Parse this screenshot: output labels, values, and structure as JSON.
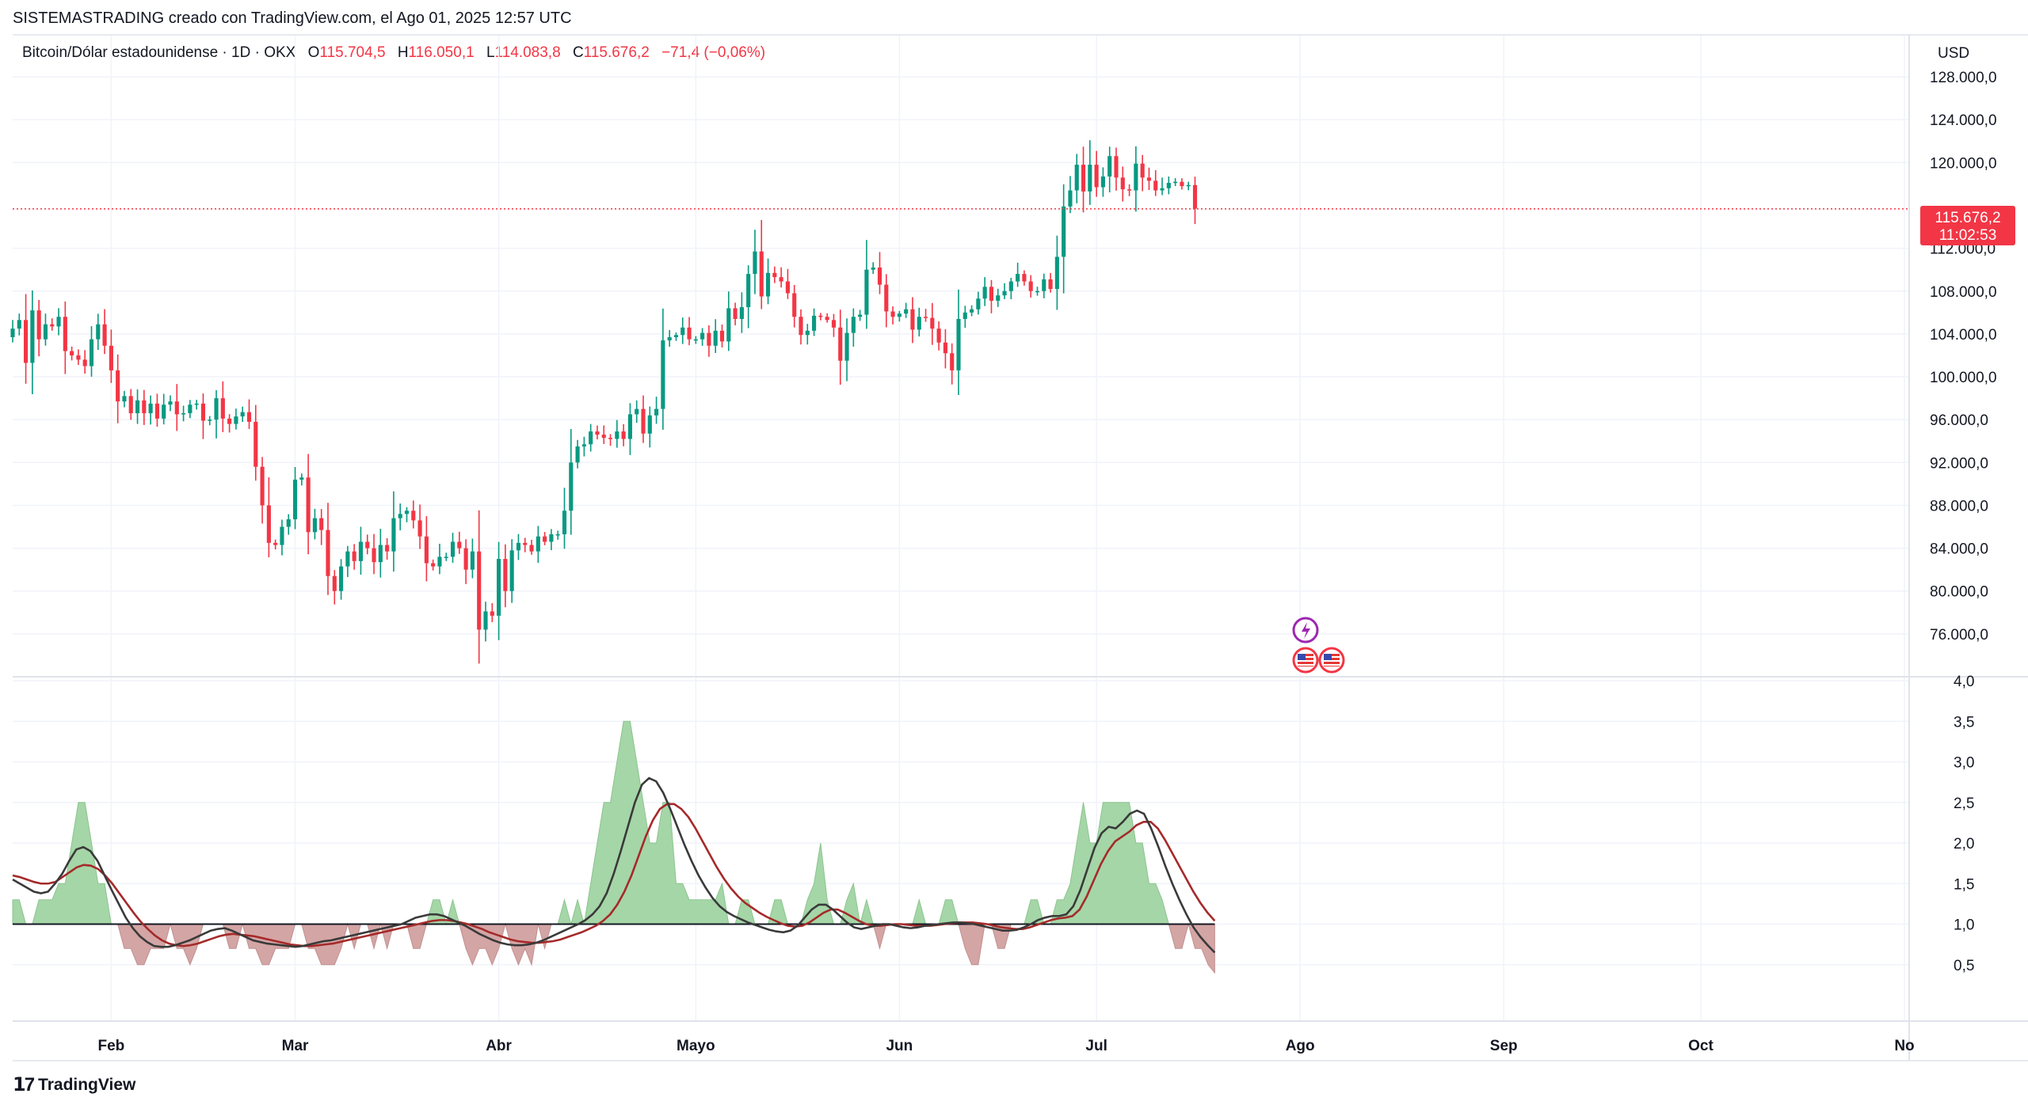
{
  "header": {
    "attribution": "SISTEMASTRADING creado con TradingView.com, el Ago 01, 2025 12:57 UTC"
  },
  "symbol": {
    "name": "Bitcoin/Dólar estadounidense · 1D · OKX",
    "open_label": "O",
    "open": "115.704,5",
    "high_label": "H",
    "high": "116.050,1",
    "low_label": "L",
    "low": "114.083,8",
    "close_label": "C",
    "close": "115.676,2",
    "change": "−71,4 (−0,06%)"
  },
  "currency": "USD",
  "price_tag": {
    "price": "115.676,2",
    "countdown": "11:02:53",
    "value": 115676.2
  },
  "branding": {
    "logo_text": "TradingView"
  },
  "colors": {
    "up": "#089981",
    "down": "#f23645",
    "green_fill": "#a5d6a7",
    "red_fill": "#d4a5a5",
    "ma_fast": "#3a3a3a",
    "ma_slow": "#a52a2a"
  },
  "chart_data": [
    {
      "type": "candlestick",
      "x_range": [
        "2025-01-17",
        "2025-11-01"
      ],
      "ylim": [
        72000,
        130000
      ],
      "y_ticks": [
        128000,
        124000,
        120000,
        112000,
        108000,
        104000,
        100000,
        96000,
        92000,
        88000,
        84000,
        80000,
        76000
      ],
      "y_tick_labels": [
        "128.000,0",
        "124.000,0",
        "120.000,0",
        "112.000,0",
        "108.000,0",
        "104.000,0",
        "100.000,0",
        "96.000,0",
        "92.000,0",
        "88.000,0",
        "84.000,0",
        "80.000,0",
        "76.000,0"
      ],
      "x_ticks": [
        {
          "label": "Feb",
          "date": "2025-02-01"
        },
        {
          "label": "Mar",
          "date": "2025-03-01"
        },
        {
          "label": "Abr",
          "date": "2025-04-01"
        },
        {
          "label": "Mayo",
          "date": "2025-05-01"
        },
        {
          "label": "Jun",
          "date": "2025-06-01"
        },
        {
          "label": "Jul",
          "date": "2025-07-01"
        },
        {
          "label": "Ago",
          "date": "2025-08-01"
        },
        {
          "label": "Sep",
          "date": "2025-09-01"
        },
        {
          "label": "Oct",
          "date": "2025-10-01"
        },
        {
          "label": "No",
          "date": "2025-11-01"
        }
      ],
      "first_date": "2025-01-17",
      "closes": [
        104500,
        105300,
        101300,
        106200,
        103500,
        104900,
        104700,
        105600,
        102400,
        102000,
        101600,
        101000,
        103500,
        104900,
        102900,
        100600,
        97700,
        98200,
        96600,
        97800,
        96600,
        97500,
        96100,
        97400,
        97700,
        96500,
        96600,
        97400,
        97500,
        95900,
        96000,
        98000,
        96100,
        95600,
        96300,
        96700,
        95800,
        91600,
        88000,
        84500,
        84300,
        86000,
        86700,
        90400,
        90600,
        85500,
        86800,
        85700,
        81400,
        80000,
        82300,
        83700,
        82800,
        84600,
        84000,
        82700,
        84300,
        83700,
        86800,
        87200,
        87500,
        86600,
        85100,
        82600,
        82300,
        83200,
        83200,
        84600,
        84000,
        82000,
        83700,
        76400,
        78100,
        77700,
        83000,
        80000,
        83800,
        84500,
        84300,
        83700,
        85100,
        84600,
        85300,
        85300,
        87500,
        92000,
        93500,
        93700,
        94900,
        94600,
        94300,
        94200,
        94900,
        94200,
        96500,
        97000,
        94700,
        96400,
        97000,
        103400,
        103700,
        103900,
        104600,
        103500,
        103500,
        104100,
        102900,
        104300,
        103300,
        106400,
        105400,
        106500,
        109600,
        111700,
        107500,
        109700,
        109300,
        108900,
        107800,
        105600,
        103900,
        104300,
        105700,
        105600,
        105300,
        104600,
        101500,
        104100,
        105600,
        105800,
        110000,
        110200,
        108600,
        106100,
        105600,
        105900,
        106300,
        104400,
        105600,
        105500,
        104500,
        103200,
        102200,
        100600,
        105400,
        106000,
        106300,
        107300,
        108400,
        107100,
        107600,
        108000,
        108900,
        109600,
        108900,
        108000,
        108000,
        109100,
        108200,
        111200,
        115900,
        117400,
        119800,
        117300,
        119800,
        117700,
        118700,
        120600,
        118600,
        117500,
        117400,
        119900,
        118600,
        118300,
        117400,
        117600,
        118100,
        118200,
        117800,
        117900,
        115700
      ]
    },
    {
      "type": "area",
      "ylim": [
        0,
        4
      ],
      "baseline": 1.0,
      "y_ticks": [
        4.0,
        3.5,
        3.0,
        2.5,
        2.0,
        1.5,
        1.0,
        0.5
      ],
      "y_tick_labels": [
        "4,0",
        "3,5",
        "3,0",
        "2,5",
        "2,0",
        "1,5",
        "1,0",
        "0,5"
      ],
      "x_range": [
        "2025-01-17",
        "2025-08-01"
      ],
      "values": [
        1.3,
        1.3,
        1.0,
        1.0,
        1.3,
        1.3,
        1.3,
        1.5,
        1.5,
        2.0,
        2.5,
        2.5,
        2.0,
        1.5,
        1.5,
        1.0,
        1.0,
        0.7,
        0.7,
        0.5,
        0.5,
        0.7,
        0.7,
        0.7,
        1.0,
        0.7,
        0.7,
        0.5,
        0.7,
        1.0,
        1.0,
        1.0,
        1.0,
        0.7,
        0.7,
        1.0,
        0.7,
        0.7,
        0.5,
        0.5,
        0.7,
        0.7,
        0.7,
        1.0,
        1.0,
        0.7,
        0.7,
        0.5,
        0.5,
        0.5,
        0.7,
        1.0,
        0.7,
        1.0,
        1.0,
        0.7,
        1.0,
        0.7,
        1.0,
        1.0,
        1.0,
        0.7,
        0.7,
        1.0,
        1.3,
        1.3,
        1.0,
        1.3,
        1.0,
        0.7,
        0.5,
        0.7,
        0.7,
        0.5,
        0.7,
        1.0,
        0.7,
        0.5,
        0.7,
        0.5,
        1.0,
        0.7,
        1.0,
        1.0,
        1.3,
        1.0,
        1.3,
        1.0,
        1.5,
        2.0,
        2.5,
        2.5,
        3.0,
        3.5,
        3.5,
        3.0,
        2.5,
        2.0,
        2.0,
        2.5,
        2.5,
        1.5,
        1.5,
        1.3,
        1.3,
        1.3,
        1.3,
        1.3,
        1.5,
        1.0,
        1.0,
        1.3,
        1.3,
        1.0,
        1.0,
        1.0,
        1.3,
        1.3,
        1.0,
        1.0,
        1.0,
        1.3,
        1.5,
        2.0,
        1.3,
        1.0,
        1.0,
        1.3,
        1.5,
        1.0,
        1.3,
        1.0,
        0.7,
        1.0,
        1.0,
        1.0,
        1.0,
        1.0,
        1.3,
        1.0,
        1.0,
        1.0,
        1.3,
        1.3,
        1.0,
        0.7,
        0.5,
        0.5,
        1.0,
        1.0,
        0.7,
        0.7,
        1.0,
        1.0,
        1.0,
        1.3,
        1.3,
        1.0,
        1.0,
        1.3,
        1.3,
        1.5,
        2.0,
        2.5,
        2.0,
        2.0,
        2.5,
        2.5,
        2.5,
        2.5,
        2.5,
        2.0,
        2.0,
        1.5,
        1.5,
        1.3,
        1.0,
        0.7,
        0.7,
        1.0,
        0.7,
        0.7,
        0.5,
        0.4
      ],
      "ma_fast": [
        1.55,
        1.5,
        1.45,
        1.4,
        1.38,
        1.4,
        1.5,
        1.62,
        1.78,
        1.92,
        1.95,
        1.9,
        1.78,
        1.6,
        1.42,
        1.25,
        1.08,
        0.95,
        0.85,
        0.78,
        0.73,
        0.72,
        0.72,
        0.74,
        0.77,
        0.8,
        0.84,
        0.88,
        0.92,
        0.94,
        0.95,
        0.92,
        0.88,
        0.84,
        0.8,
        0.78,
        0.76,
        0.75,
        0.74,
        0.73,
        0.72,
        0.73,
        0.75,
        0.77,
        0.79,
        0.8,
        0.82,
        0.84,
        0.86,
        0.88,
        0.9,
        0.92,
        0.94,
        0.96,
        0.98,
        1.0,
        1.04,
        1.08,
        1.1,
        1.12,
        1.12,
        1.1,
        1.06,
        1.02,
        0.98,
        0.93,
        0.88,
        0.84,
        0.8,
        0.77,
        0.75,
        0.74,
        0.74,
        0.75,
        0.77,
        0.8,
        0.84,
        0.88,
        0.92,
        0.96,
        1.0,
        1.05,
        1.12,
        1.22,
        1.38,
        1.62,
        1.9,
        2.2,
        2.5,
        2.72,
        2.8,
        2.76,
        2.62,
        2.42,
        2.2,
        1.98,
        1.78,
        1.6,
        1.45,
        1.32,
        1.22,
        1.15,
        1.1,
        1.06,
        1.02,
        0.99,
        0.96,
        0.93,
        0.91,
        0.9,
        0.92,
        0.98,
        1.08,
        1.18,
        1.24,
        1.24,
        1.18,
        1.1,
        1.02,
        0.96,
        0.94,
        0.96,
        0.98,
        1.0,
        1.0,
        0.98,
        0.96,
        0.95,
        0.96,
        0.98,
        0.99,
        1.0,
        1.01,
        1.02,
        1.02,
        1.01,
        1.0,
        0.98,
        0.96,
        0.94,
        0.92,
        0.92,
        0.93,
        0.96,
        1.0,
        1.05,
        1.08,
        1.1,
        1.1,
        1.12,
        1.22,
        1.42,
        1.68,
        1.94,
        2.12,
        2.2,
        2.18,
        2.26,
        2.36,
        2.4,
        2.36,
        2.18,
        1.96,
        1.72,
        1.5,
        1.3,
        1.12,
        0.96,
        0.84,
        0.74,
        0.65
      ],
      "ma_slow_start_index": 0,
      "ma_slow": [
        1.6,
        1.58,
        1.55,
        1.52,
        1.5,
        1.5,
        1.52,
        1.58,
        1.64,
        1.7,
        1.73,
        1.72,
        1.68,
        1.6,
        1.5,
        1.38,
        1.26,
        1.14,
        1.03,
        0.94,
        0.86,
        0.8,
        0.76,
        0.74,
        0.73,
        0.74,
        0.76,
        0.79,
        0.82,
        0.85,
        0.87,
        0.88,
        0.87,
        0.86,
        0.85,
        0.83,
        0.81,
        0.79,
        0.77,
        0.75,
        0.74,
        0.73,
        0.73,
        0.74,
        0.75,
        0.76,
        0.78,
        0.8,
        0.82,
        0.84,
        0.86,
        0.88,
        0.9,
        0.92,
        0.94,
        0.96,
        0.98,
        1.0,
        1.02,
        1.04,
        1.05,
        1.05,
        1.04,
        1.02,
        1.0,
        0.97,
        0.94,
        0.9,
        0.87,
        0.84,
        0.81,
        0.79,
        0.78,
        0.77,
        0.77,
        0.78,
        0.79,
        0.81,
        0.84,
        0.87,
        0.9,
        0.94,
        0.98,
        1.04,
        1.12,
        1.24,
        1.4,
        1.6,
        1.84,
        2.08,
        2.28,
        2.42,
        2.48,
        2.48,
        2.42,
        2.32,
        2.18,
        2.02,
        1.86,
        1.7,
        1.56,
        1.44,
        1.34,
        1.26,
        1.2,
        1.14,
        1.09,
        1.05,
        1.01,
        0.98,
        0.97,
        0.98,
        1.02,
        1.08,
        1.14,
        1.18,
        1.18,
        1.14,
        1.09,
        1.04,
        1.0,
        0.98,
        0.98,
        0.99,
        1.0,
        1.0,
        0.99,
        0.98,
        0.98,
        0.98,
        0.99,
        1.0,
        1.01,
        1.02,
        1.02,
        1.02,
        1.01,
        1.0,
        0.98,
        0.96,
        0.95,
        0.94,
        0.94,
        0.96,
        0.99,
        1.02,
        1.05,
        1.07,
        1.08,
        1.1,
        1.18,
        1.34,
        1.54,
        1.74,
        1.9,
        2.02,
        2.08,
        2.14,
        2.22,
        2.26,
        2.26,
        2.18,
        2.04,
        1.88,
        1.72,
        1.56,
        1.4,
        1.26,
        1.14,
        1.04
      ]
    }
  ]
}
